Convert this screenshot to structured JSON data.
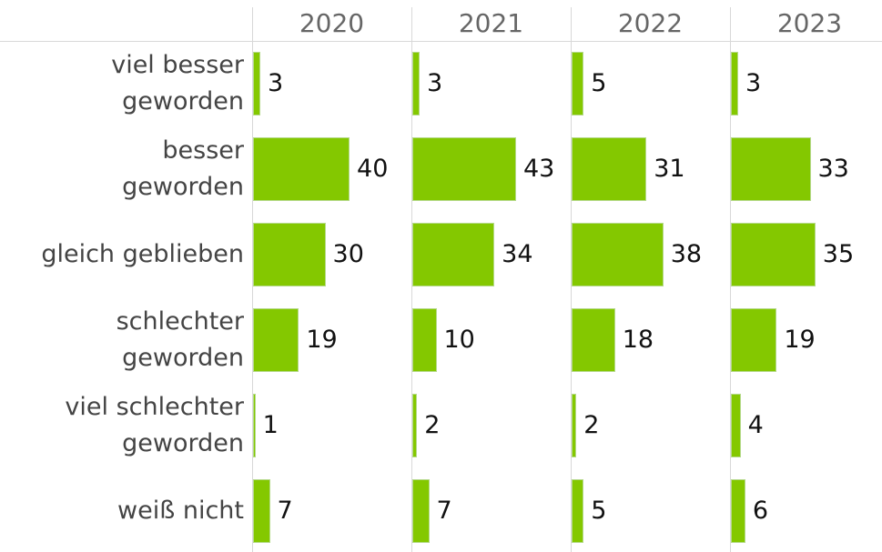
{
  "chart_data": {
    "type": "bar",
    "orientation": "horizontal",
    "categories": [
      "viel besser\ngeworden",
      "besser\ngeworden",
      "gleich geblieben",
      "schlechter\ngeworden",
      "viel schlechter\ngeworden",
      "weiß nicht"
    ],
    "series": [
      {
        "name": "2020",
        "color": "#84c800",
        "values": [
          3,
          40,
          30,
          19,
          1,
          7
        ]
      },
      {
        "name": "2021",
        "color": "#84c800",
        "values": [
          3,
          43,
          34,
          10,
          2,
          7
        ]
      },
      {
        "name": "2022",
        "color": "#84c800",
        "values": [
          5,
          31,
          38,
          18,
          2,
          5
        ]
      },
      {
        "name": "2023",
        "color": "#84c800",
        "values": [
          3,
          33,
          35,
          19,
          4,
          6
        ]
      }
    ],
    "xlim": [
      0,
      66
    ]
  }
}
